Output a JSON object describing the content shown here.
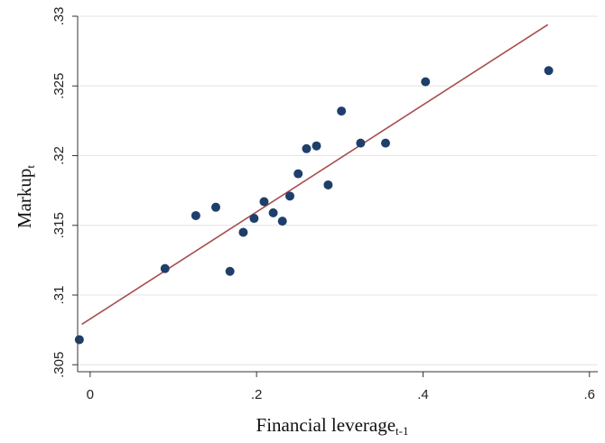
{
  "chart_data": {
    "type": "scatter",
    "xlabel": "Financial leverage",
    "xlabel_subscript": "t-1",
    "ylabel": "Markup",
    "ylabel_subscript": "t",
    "xlim": [
      -0.015,
      0.61
    ],
    "ylim": [
      0.3045,
      0.33
    ],
    "x_ticks": [
      0,
      0.2,
      0.4,
      0.6
    ],
    "x_tick_labels": [
      "0",
      ".2",
      ".4",
      ".6"
    ],
    "y_ticks": [
      0.305,
      0.31,
      0.315,
      0.32,
      0.325,
      0.33
    ],
    "y_tick_labels": [
      ".305",
      ".31",
      ".315",
      ".32",
      ".325",
      ".33"
    ],
    "grid": "horizontal",
    "legend": "none",
    "series": [
      {
        "type": "scatter",
        "color": "#1f3f6b",
        "x": [
          -0.013,
          0.09,
          0.127,
          0.151,
          0.168,
          0.184,
          0.197,
          0.209,
          0.22,
          0.231,
          0.24,
          0.25,
          0.26,
          0.272,
          0.286,
          0.302,
          0.325,
          0.355,
          0.403,
          0.551
        ],
        "y": [
          0.3068,
          0.3119,
          0.3157,
          0.3163,
          0.3117,
          0.3145,
          0.3155,
          0.3167,
          0.3159,
          0.3153,
          0.3171,
          0.3187,
          0.3205,
          0.3207,
          0.3179,
          0.3232,
          0.3209,
          0.3209,
          0.3253,
          0.3261
        ]
      },
      {
        "type": "line",
        "color": "#a84c4c",
        "x": [
          -0.01,
          0.55
        ],
        "y": [
          0.3079,
          0.3294
        ]
      }
    ]
  }
}
